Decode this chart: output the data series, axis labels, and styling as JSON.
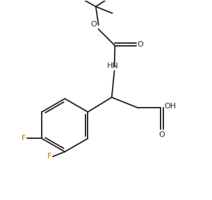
{
  "background": "#ffffff",
  "line_color": "#2b2b2b",
  "line_width": 1.4,
  "label_color": "#2b2b2b",
  "F_color": "#b87800",
  "label_fontsize": 8.0,
  "figsize": [
    3.05,
    2.88
  ],
  "dpi": 100,
  "xlim": [
    0.0,
    7.5
  ],
  "ylim": [
    0.0,
    7.5
  ]
}
